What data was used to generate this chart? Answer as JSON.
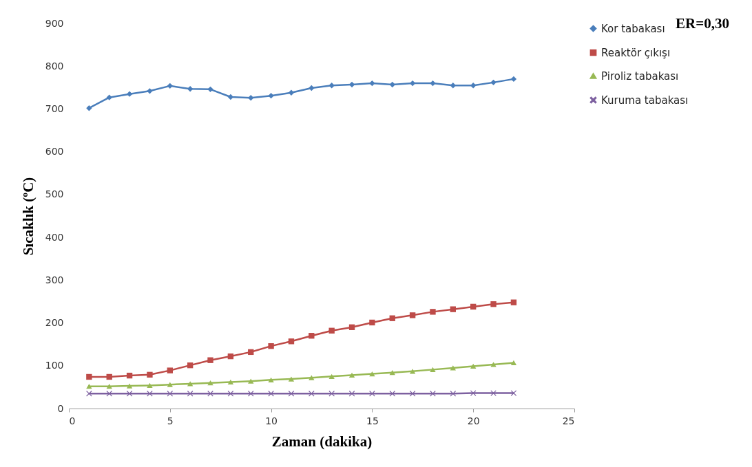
{
  "chart_data": {
    "type": "line",
    "xlabel": "Zaman (dakika)",
    "ylabel": "Sıcaklık  (ºC)",
    "annotations": [
      "ER=0,30"
    ],
    "x": [
      1,
      2,
      3,
      4,
      5,
      6,
      7,
      8,
      9,
      10,
      11,
      12,
      13,
      14,
      15,
      16,
      17,
      18,
      19,
      20,
      21,
      22
    ],
    "xlim": [
      0,
      25
    ],
    "xticks": [
      0,
      5,
      10,
      15,
      20,
      25
    ],
    "ylim": [
      0,
      900
    ],
    "yticks": [
      0,
      100,
      200,
      300,
      400,
      500,
      600,
      700,
      800,
      900
    ],
    "grid": false,
    "legend": "right",
    "series": [
      {
        "name": "Kor tabakası",
        "color": "#4a7ebb",
        "marker": "diamond",
        "values": [
          702,
          727,
          735,
          742,
          754,
          747,
          746,
          728,
          726,
          731,
          738,
          749,
          755,
          757,
          760,
          757,
          760,
          760,
          755,
          755,
          762,
          770
        ]
      },
      {
        "name": "Reaktör çıkışı",
        "color": "#be4b48",
        "marker": "square",
        "values": [
          74,
          74,
          77,
          79,
          89,
          101,
          113,
          122,
          132,
          146,
          157,
          170,
          182,
          190,
          201,
          211,
          218,
          226,
          232,
          238,
          244,
          248
        ]
      },
      {
        "name": "Piroliz tabakası",
        "color": "#98b954",
        "marker": "triangle",
        "values": [
          52,
          52,
          53,
          54,
          56,
          58,
          60,
          62,
          64,
          67,
          69,
          72,
          75,
          78,
          81,
          84,
          87,
          91,
          95,
          99,
          103,
          107
        ]
      },
      {
        "name": "Kuruma tabakası",
        "color": "#7d60a0",
        "marker": "cross",
        "values": [
          35,
          35,
          35,
          35,
          35,
          35,
          35,
          35,
          35,
          35,
          35,
          35,
          35,
          35,
          35,
          35,
          35,
          35,
          35,
          36,
          36,
          36
        ]
      }
    ]
  }
}
